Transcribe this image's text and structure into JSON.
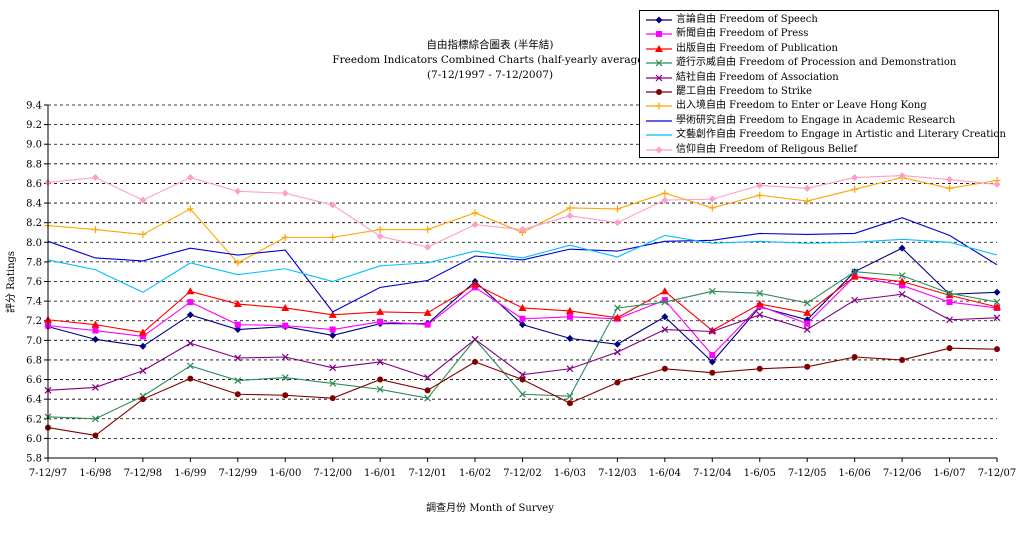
{
  "chart_data": {
    "type": "line",
    "title": "自由指標綜合圖表 (半年結)",
    "subtitle": "Freedom Indicators Combined Charts (half-yearly average)",
    "period": "(7-12/1997 - 7-12/2007)",
    "xlabel": "調查月份 Month of Survey",
    "ylabel": "評分 Ratings",
    "ylim": [
      5.8,
      9.4
    ],
    "ytick_step": 0.2,
    "yticks": [
      "5.8",
      "6.0",
      "6.2",
      "6.4",
      "6.6",
      "6.8",
      "7.0",
      "7.2",
      "7.4",
      "7.6",
      "7.8",
      "8.0",
      "8.2",
      "8.4",
      "8.6",
      "8.8",
      "9.0",
      "9.2",
      "9.4"
    ],
    "grid": "horizontal dashed",
    "legend_position": "top-right",
    "categories": [
      "7-12/97",
      "1-6/98",
      "7-12/98",
      "1-6/99",
      "7-12/99",
      "1-6/00",
      "7-12/00",
      "1-6/01",
      "7-12/01",
      "1-6/02",
      "7-12/02",
      "1-6/03",
      "7-12/03",
      "1-6/04",
      "7-12/04",
      "1-6/05",
      "7-12/05",
      "1-6/06",
      "7-12/06",
      "1-6/07",
      "7-12/07"
    ],
    "series": [
      {
        "name": "言論自由 Freedom of Speech",
        "color": "#000080",
        "marker": "diamond",
        "values": [
          7.14,
          7.01,
          6.94,
          7.26,
          7.11,
          7.14,
          7.05,
          7.17,
          7.17,
          7.6,
          7.16,
          7.02,
          6.96,
          7.24,
          6.78,
          7.34,
          7.21,
          7.7,
          7.94,
          7.47,
          7.49
        ]
      },
      {
        "name": "新聞自由 Freedom of Press",
        "color": "#ff00ff",
        "marker": "square",
        "values": [
          7.15,
          7.1,
          7.04,
          7.39,
          7.16,
          7.15,
          7.11,
          7.19,
          7.16,
          7.54,
          7.22,
          7.24,
          7.22,
          7.41,
          6.85,
          7.35,
          7.17,
          7.65,
          7.56,
          7.39,
          7.33
        ]
      },
      {
        "name": "出版自由 Freedom of Publication",
        "color": "#ff0000",
        "marker": "triangle",
        "values": [
          7.21,
          7.16,
          7.08,
          7.5,
          7.37,
          7.33,
          7.26,
          7.29,
          7.28,
          7.57,
          7.33,
          7.3,
          7.23,
          7.5,
          7.1,
          7.37,
          7.28,
          7.65,
          7.6,
          7.46,
          7.34
        ]
      },
      {
        "name": "遊行示威自由 Freedom of Procession and Demonstration",
        "color": "#2e8b57",
        "marker": "x",
        "values": [
          6.22,
          6.2,
          6.43,
          6.74,
          6.59,
          6.62,
          6.56,
          6.5,
          6.41,
          7.01,
          6.45,
          6.43,
          7.33,
          7.39,
          7.5,
          7.48,
          7.38,
          7.7,
          7.66,
          7.48,
          7.39
        ]
      },
      {
        "name": "結社自由 Freedom of Association",
        "color": "#800080",
        "marker": "x",
        "values": [
          6.49,
          6.52,
          6.69,
          6.97,
          6.82,
          6.83,
          6.72,
          6.78,
          6.62,
          7.01,
          6.65,
          6.71,
          6.88,
          7.11,
          7.09,
          7.26,
          7.11,
          7.41,
          7.47,
          7.21,
          7.23
        ]
      },
      {
        "name": "罷工自由 Freedom to Strike",
        "color": "#800000",
        "marker": "circle",
        "values": [
          6.11,
          6.03,
          6.4,
          6.61,
          6.45,
          6.44,
          6.41,
          6.6,
          6.49,
          6.78,
          6.6,
          6.36,
          6.57,
          6.71,
          6.67,
          6.71,
          6.73,
          6.83,
          6.8,
          6.92,
          6.91
        ]
      },
      {
        "name": "出入境自由 Freedom to Enter or Leave Hong Kong",
        "color": "#ffa500",
        "marker": "plus",
        "values": [
          8.17,
          8.13,
          8.08,
          8.34,
          7.79,
          8.05,
          8.05,
          8.13,
          8.13,
          8.3,
          8.1,
          8.35,
          8.34,
          8.5,
          8.35,
          8.48,
          8.42,
          8.54,
          8.66,
          8.55,
          8.63
        ]
      },
      {
        "name": "學術研究自由 Freedom to Engage in Academic Research",
        "color": "#0000cd",
        "marker": "none",
        "values": [
          8.01,
          7.84,
          7.81,
          7.94,
          7.87,
          7.92,
          7.29,
          7.54,
          7.61,
          7.86,
          7.82,
          7.93,
          7.91,
          8.01,
          8.02,
          8.09,
          8.08,
          8.09,
          8.25,
          8.07,
          7.77
        ]
      },
      {
        "name": "文藝創作自由 Freedom to Engage in Artistic and Literary Creation",
        "color": "#00bfff",
        "marker": "none",
        "values": [
          7.82,
          7.72,
          7.49,
          7.79,
          7.67,
          7.73,
          7.6,
          7.76,
          7.79,
          7.91,
          7.84,
          7.97,
          7.85,
          8.07,
          7.99,
          8.01,
          7.99,
          8.0,
          8.03,
          8.0,
          7.87
        ]
      },
      {
        "name": "信仰自由 Freedom of Religous Belief",
        "color": "#ff9ec8",
        "marker": "diamond",
        "values": [
          8.61,
          8.66,
          8.43,
          8.66,
          8.52,
          8.5,
          8.38,
          8.06,
          7.95,
          8.18,
          8.13,
          8.27,
          8.2,
          8.43,
          8.44,
          8.58,
          8.55,
          8.66,
          8.68,
          8.64,
          8.59
        ]
      }
    ]
  }
}
